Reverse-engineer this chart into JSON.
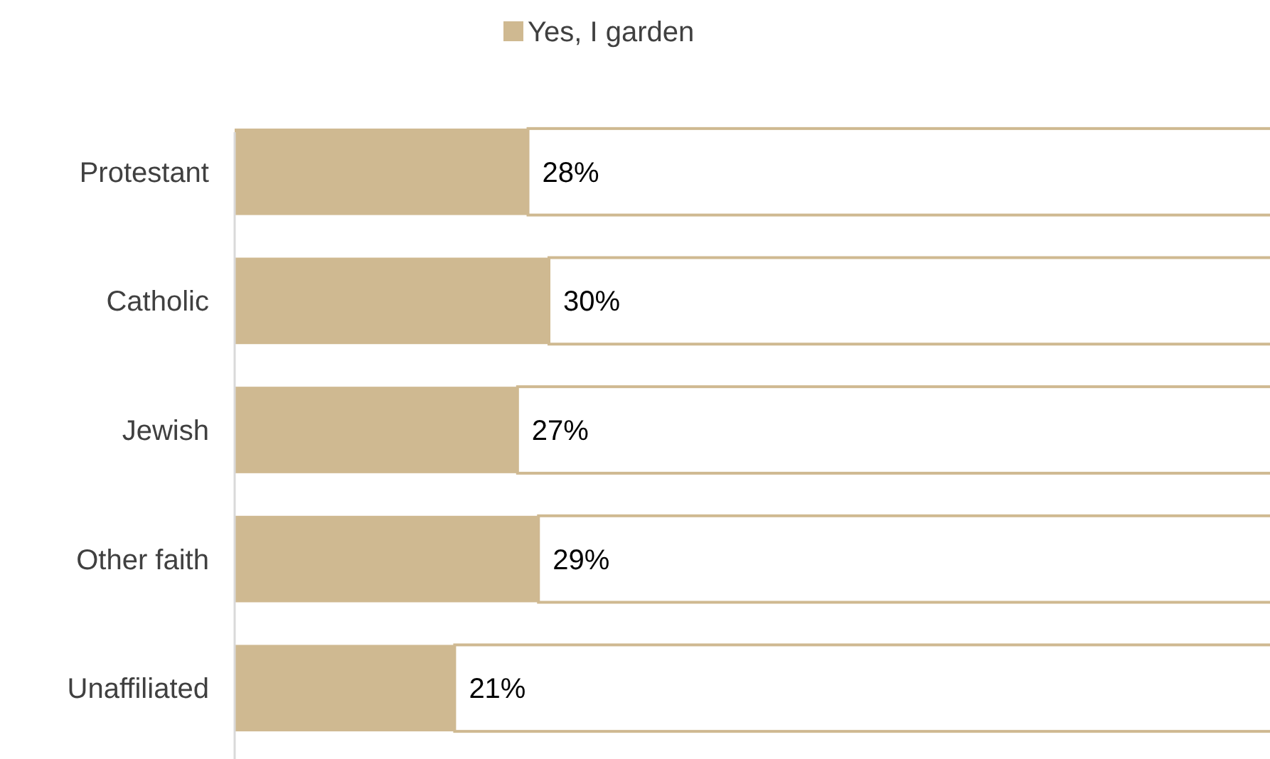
{
  "chart_data": {
    "type": "bar",
    "orientation": "horizontal",
    "categories": [
      "Protestant",
      "Catholic",
      "Jewish",
      "Other faith",
      "Unaffiliated"
    ],
    "legend": "top",
    "series": [
      {
        "name": "Yes, I garden",
        "color": "#cfb991",
        "values": [
          28,
          30,
          27,
          29,
          21
        ],
        "value_labels": [
          "28%",
          "30%",
          "27%",
          "29%",
          "21%"
        ]
      }
    ]
  }
}
